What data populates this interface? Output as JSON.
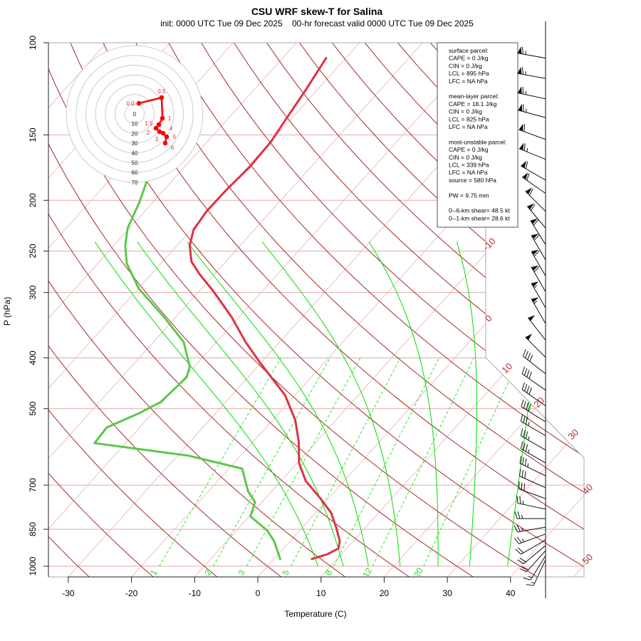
{
  "title": "CSU WRF skew-T for Salina",
  "subtitle": "init: 0000 UTC Tue 09 Dec 2025    00-hr forecast valid 0000 UTC Tue 09 Dec 2025",
  "info_box": {
    "sections": [
      [
        "surface parcel:",
        "CAPE = 0 J/kg",
        "CIN = 0 J/kg",
        "LCL = 895 hPa",
        "LFC = NA hPa"
      ],
      [
        "mean-layer parcel:",
        "CAPE = 18.1 J/kg",
        "CIN = 0 J/kg",
        "LCL = 825 hPa",
        "LFC = NA hPa"
      ],
      [
        "most-unstable parcel:",
        "CAPE = 0 J/kg",
        "CIN = 0 J/kg",
        "LCL = 339 hPa",
        "LFC = NA hPa",
        "source = 580 hPa"
      ],
      [
        "PW =  9.75 mm"
      ],
      [
        "0--6-km shear= 48.5 kt",
        "0--1-km shear= 28.6 kt"
      ]
    ]
  },
  "chart_data": {
    "type": "line",
    "subtype": "skew-T log-P",
    "title": "CSU WRF skew-T for Salina",
    "xlabel": "Temperature (C)",
    "ylabel": "P (hPa)",
    "xticks": [
      -30,
      -20,
      -10,
      0,
      10,
      20,
      30,
      40
    ],
    "yticks": [
      100,
      150,
      200,
      250,
      300,
      400,
      500,
      700,
      850,
      1000
    ],
    "xlim": [
      -33,
      52
    ],
    "ylim": [
      1050,
      100
    ],
    "colors": {
      "temperature": "#dd3344",
      "dewpoint": "#5bc84a",
      "dry_adiabat": "#a52a2a",
      "isotherm": "#e6b3b3",
      "moist": "#00e000",
      "hodograph": "#ff0000"
    },
    "isotherm_labels": [
      -10,
      0,
      10,
      20,
      30,
      40,
      50
    ],
    "mixing_ratio_lines_gkg": [
      1,
      2,
      3,
      5,
      8,
      12,
      20
    ],
    "dry_adiabats_C": [
      -40,
      -30,
      -20,
      -10,
      0,
      10,
      20,
      30,
      40,
      50,
      60,
      70,
      80,
      90,
      100,
      110,
      120,
      130,
      140,
      150,
      160,
      170
    ],
    "moist_adiabats_start_C": [
      8,
      12,
      16,
      21,
      27,
      32,
      38
    ],
    "series": [
      {
        "name": "temperature",
        "p": [
          107,
          123,
          141,
          155,
          173,
          190,
          210,
          228,
          244,
          262,
          277,
          299,
          334,
          373,
          409,
          443,
          471,
          526,
          578,
          635,
          687,
          743,
          791,
          842,
          896,
          925,
          948,
          969
        ],
        "T": [
          -63.1,
          -61.8,
          -60.7,
          -59.9,
          -59.7,
          -60.1,
          -60.2,
          -59.6,
          -58.0,
          -55.4,
          -52.3,
          -47.6,
          -41.2,
          -35.4,
          -30.1,
          -25.3,
          -21.6,
          -16.4,
          -12.8,
          -9.7,
          -6.1,
          -1.2,
          2.5,
          5.3,
          7.9,
          8.7,
          7.8,
          6.0
        ]
      },
      {
        "name": "dewpoint",
        "p": [
          170,
          187,
          202,
          226,
          244,
          264,
          295,
          334,
          373,
          416,
          436,
          486,
          510,
          543,
          582,
          615,
          651,
          720,
          754,
          803,
          855,
          896,
          969
        ],
        "T": [
          -75.8,
          -73.6,
          -72.1,
          -70.3,
          -68.2,
          -65.4,
          -59.9,
          -51.9,
          -45.2,
          -40.7,
          -39.7,
          -40.3,
          -42.1,
          -45.2,
          -44.9,
          -28.2,
          -17.9,
          -13.7,
          -11.1,
          -9.8,
          -5.1,
          -2.5,
          1.0
        ]
      }
    ],
    "wind_barbs": [
      {
        "p": 107,
        "dir": 280,
        "kt": 65
      },
      {
        "p": 117,
        "dir": 280,
        "kt": 65
      },
      {
        "p": 128,
        "dir": 282,
        "kt": 65
      },
      {
        "p": 139,
        "dir": 285,
        "kt": 65
      },
      {
        "p": 153,
        "dir": 290,
        "kt": 60
      },
      {
        "p": 167,
        "dir": 292,
        "kt": 65
      },
      {
        "p": 183,
        "dir": 300,
        "kt": 60
      },
      {
        "p": 194,
        "dir": 305,
        "kt": 60
      },
      {
        "p": 210,
        "dir": 315,
        "kt": 60
      },
      {
        "p": 226,
        "dir": 320,
        "kt": 60
      },
      {
        "p": 243,
        "dir": 328,
        "kt": 60
      },
      {
        "p": 260,
        "dir": 330,
        "kt": 60
      },
      {
        "p": 279,
        "dir": 330,
        "kt": 60
      },
      {
        "p": 299,
        "dir": 330,
        "kt": 60
      },
      {
        "p": 321,
        "dir": 330,
        "kt": 55
      },
      {
        "p": 344,
        "dir": 330,
        "kt": 55
      },
      {
        "p": 370,
        "dir": 322,
        "kt": 50
      },
      {
        "p": 399,
        "dir": 315,
        "kt": 50
      },
      {
        "p": 429,
        "dir": 308,
        "kt": 40
      },
      {
        "p": 461,
        "dir": 305,
        "kt": 40
      },
      {
        "p": 494,
        "dir": 305,
        "kt": 40
      },
      {
        "p": 530,
        "dir": 302,
        "kt": 40
      },
      {
        "p": 563,
        "dir": 300,
        "kt": 35
      },
      {
        "p": 600,
        "dir": 300,
        "kt": 35
      },
      {
        "p": 635,
        "dir": 300,
        "kt": 35
      },
      {
        "p": 672,
        "dir": 296,
        "kt": 35
      },
      {
        "p": 708,
        "dir": 294,
        "kt": 30
      },
      {
        "p": 743,
        "dir": 290,
        "kt": 30
      },
      {
        "p": 778,
        "dir": 282,
        "kt": 25
      },
      {
        "p": 811,
        "dir": 270,
        "kt": 25
      },
      {
        "p": 842,
        "dir": 260,
        "kt": 25
      },
      {
        "p": 868,
        "dir": 250,
        "kt": 25
      },
      {
        "p": 891,
        "dir": 240,
        "kt": 20
      },
      {
        "p": 913,
        "dir": 230,
        "kt": 20
      },
      {
        "p": 934,
        "dir": 222,
        "kt": 20
      },
      {
        "p": 955,
        "dir": 212,
        "kt": 15
      },
      {
        "p": 972,
        "dir": 205,
        "kt": 15
      }
    ],
    "hodograph": {
      "ring_labels": [
        "0",
        "10",
        "20",
        "30",
        "40",
        "50",
        "60",
        "70"
      ],
      "points": [
        {
          "label": "0.0",
          "u": 4.4,
          "v": 10.9
        },
        {
          "label": "0.5",
          "u": 27.7,
          "v": 16.8
        },
        {
          "label": "1",
          "u": 28.5,
          "v": -4.4
        },
        {
          "label": "1.5",
          "u": 24.8,
          "v": -10.9
        },
        {
          "label": "2",
          "u": 21.9,
          "v": -14.6
        },
        {
          "label": "3",
          "u": 25.5,
          "v": -18.2
        },
        {
          "label": "4",
          "u": 29.2,
          "v": -19.7
        },
        {
          "label": "5",
          "u": 32.8,
          "v": -23.4
        },
        {
          "label": "6",
          "u": 31.4,
          "v": -29.9
        }
      ]
    }
  }
}
